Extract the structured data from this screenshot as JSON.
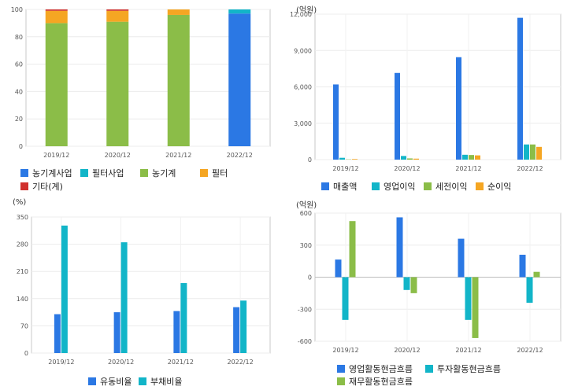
{
  "chart_data": [
    {
      "type": "bar",
      "stacked": true,
      "unit": "",
      "categories": [
        "2019/12",
        "2020/12",
        "2021/12",
        "2022/12"
      ],
      "ylim": [
        0,
        100
      ],
      "yticks": [
        "0",
        "20",
        "40",
        "60",
        "80",
        "100"
      ],
      "series": [
        {
          "name": "농기계사업",
          "color": "#2b78e4",
          "values": [
            0,
            0,
            0,
            97
          ]
        },
        {
          "name": "필터사업",
          "color": "#12b5c8",
          "values": [
            0,
            0,
            0,
            3
          ]
        },
        {
          "name": "농기계",
          "color": "#8bbd48",
          "values": [
            90,
            91,
            96,
            0
          ]
        },
        {
          "name": "필터",
          "color": "#f5a623",
          "values": [
            9,
            8,
            4,
            0
          ]
        },
        {
          "name": "기타(계)",
          "color": "#d0312d",
          "values": [
            1,
            1,
            0,
            0
          ]
        }
      ],
      "grid": true
    },
    {
      "type": "bar",
      "unit": "(억원)",
      "categories": [
        "2019/12",
        "2020/12",
        "2021/12",
        "2022/12"
      ],
      "ylim": [
        0,
        12000
      ],
      "yticks": [
        "0",
        "3,000",
        "6,000",
        "9,000",
        "12,000"
      ],
      "series": [
        {
          "name": "매출액",
          "color": "#2b78e4",
          "values": [
            6200,
            7150,
            8450,
            11700
          ]
        },
        {
          "name": "영업이익",
          "color": "#12b5c8",
          "values": [
            150,
            300,
            400,
            1250
          ]
        },
        {
          "name": "세전이익",
          "color": "#8bbd48",
          "values": [
            20,
            100,
            380,
            1250
          ]
        },
        {
          "name": "순이익",
          "color": "#f5a623",
          "values": [
            50,
            80,
            350,
            1050
          ]
        }
      ],
      "grid": true
    },
    {
      "type": "bar",
      "unit": "(%)",
      "categories": [
        "2019/12",
        "2020/12",
        "2021/12",
        "2022/12"
      ],
      "ylim": [
        0,
        350
      ],
      "yticks": [
        "0",
        "70",
        "140",
        "210",
        "280",
        "350"
      ],
      "series": [
        {
          "name": "유동비율",
          "color": "#2b78e4",
          "values": [
            100,
            105,
            108,
            118
          ]
        },
        {
          "name": "부채비율",
          "color": "#12b5c8",
          "values": [
            328,
            285,
            180,
            135
          ]
        }
      ],
      "grid": true
    },
    {
      "type": "bar",
      "unit": "(억원)",
      "categories": [
        "2019/12",
        "2020/12",
        "2021/12",
        "2022/12"
      ],
      "ylim": [
        -600,
        600
      ],
      "yticks": [
        "-600",
        "-300",
        "0",
        "300",
        "600"
      ],
      "series": [
        {
          "name": "영업활동현금흐름",
          "color": "#2b78e4",
          "values": [
            165,
            560,
            360,
            210
          ]
        },
        {
          "name": "투자활동현금흐름",
          "color": "#12b5c8",
          "values": [
            -400,
            -120,
            -400,
            -240
          ]
        },
        {
          "name": "재무활동현금흐름",
          "color": "#8bbd48",
          "values": [
            525,
            -150,
            -570,
            50
          ]
        }
      ],
      "grid": true
    }
  ]
}
